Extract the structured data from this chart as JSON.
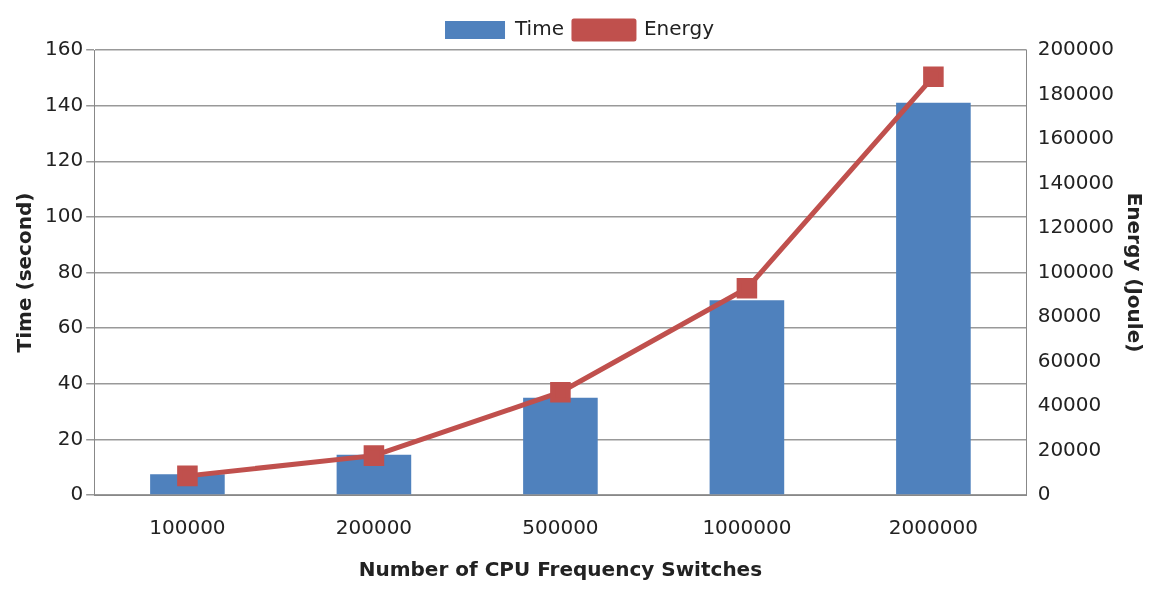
{
  "chart_data": {
    "type": "bar",
    "xlabel": "Number of CPU Frequency Switches",
    "ylabel": "Time (second)",
    "y2label": "Energy (Joule)",
    "categories": [
      "100000",
      "200000",
      "500000",
      "1000000",
      "2000000"
    ],
    "series": [
      {
        "name": "Time",
        "color": "#4f81bd",
        "values": [
          7.5,
          14.5,
          35,
          70,
          141
        ]
      },
      {
        "name": "Energy",
        "type": "line",
        "axis": "y2",
        "color": "#c0504d",
        "marker": "square",
        "values": [
          8600,
          17700,
          46200,
          92900,
          188000
        ]
      }
    ],
    "ylim": [
      0,
      160
    ],
    "yticks": [
      0,
      20,
      40,
      60,
      80,
      100,
      120,
      140,
      160
    ],
    "y2lim": [
      0,
      200000
    ],
    "y2ticks": [
      0,
      20000,
      40000,
      60000,
      80000,
      100000,
      120000,
      140000,
      160000,
      180000,
      200000
    ],
    "grid": "y",
    "legend": "top"
  }
}
